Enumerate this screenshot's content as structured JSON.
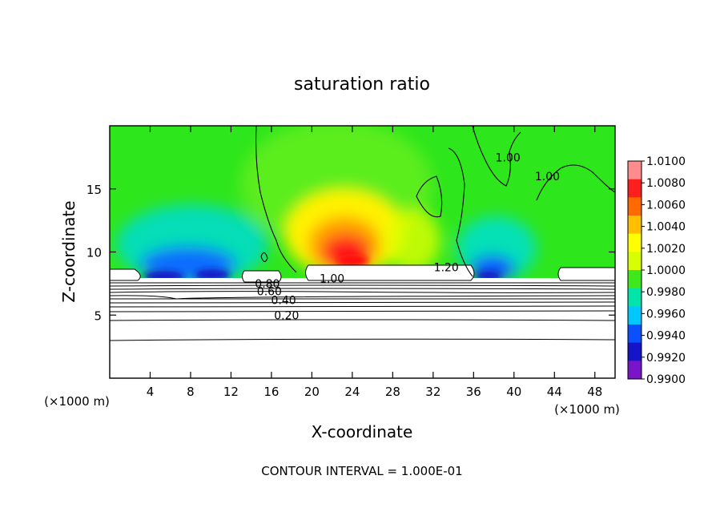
{
  "chart_data": {
    "type": "heatmap",
    "title": "saturation ratio",
    "xlabel": "X-coordinate",
    "ylabel": "Z-coordinate",
    "x_unit_left": "(×1000 m)",
    "x_unit_right": "(×1000 m)",
    "footer": "CONTOUR INTERVAL = 1.000E-01",
    "xlim": [
      0,
      50
    ],
    "ylim": [
      0,
      20
    ],
    "x_ticks": [
      4,
      8,
      12,
      16,
      20,
      24,
      28,
      32,
      36,
      40,
      44,
      48
    ],
    "y_ticks": [
      5,
      10,
      15
    ],
    "colorbar": {
      "range": [
        0.99,
        1.01
      ],
      "labels": [
        "1.0100",
        "1.0080",
        "1.0060",
        "1.0040",
        "1.0020",
        "1.0000",
        "0.9980",
        "0.9960",
        "0.9940",
        "0.9920",
        "0.9900"
      ],
      "colors": [
        "#ff8c8c",
        "#ff1e1e",
        "#ff6a00",
        "#ffbf00",
        "#ffff00",
        "#d8ff00",
        "#3ee81a",
        "#00e6aa",
        "#00c8ff",
        "#0a50ff",
        "#1414c8",
        "#7a14c8"
      ]
    },
    "contour_labels": [
      {
        "text": "0.20",
        "x": 17.5,
        "y": 5
      },
      {
        "text": "0.40",
        "x": 17.2,
        "y": 6.2
      },
      {
        "text": "0.60",
        "x": 15.8,
        "y": 6.9
      },
      {
        "text": "0.80",
        "x": 15.6,
        "y": 7.5
      },
      {
        "text": "1.00",
        "x": 22,
        "y": 7.9
      },
      {
        "text": "1.20",
        "x": 33.3,
        "y": 8.8
      },
      {
        "text": "1.00",
        "x": 39.4,
        "y": 17.5
      },
      {
        "text": "1.00",
        "x": 43.3,
        "y": 16
      }
    ],
    "field_features": [
      {
        "name": "moist max (red)",
        "x": [
          20,
          26
        ],
        "z": [
          9,
          13
        ],
        "value": 1.007
      },
      {
        "name": "dry min (blue) left",
        "x": [
          5,
          13
        ],
        "z": [
          8,
          12
        ],
        "value": 0.993
      },
      {
        "name": "dry min (blue) right",
        "x": [
          36,
          40
        ],
        "z": [
          8,
          11
        ],
        "value": 0.994
      },
      {
        "name": "background",
        "value": 1.0
      }
    ]
  }
}
